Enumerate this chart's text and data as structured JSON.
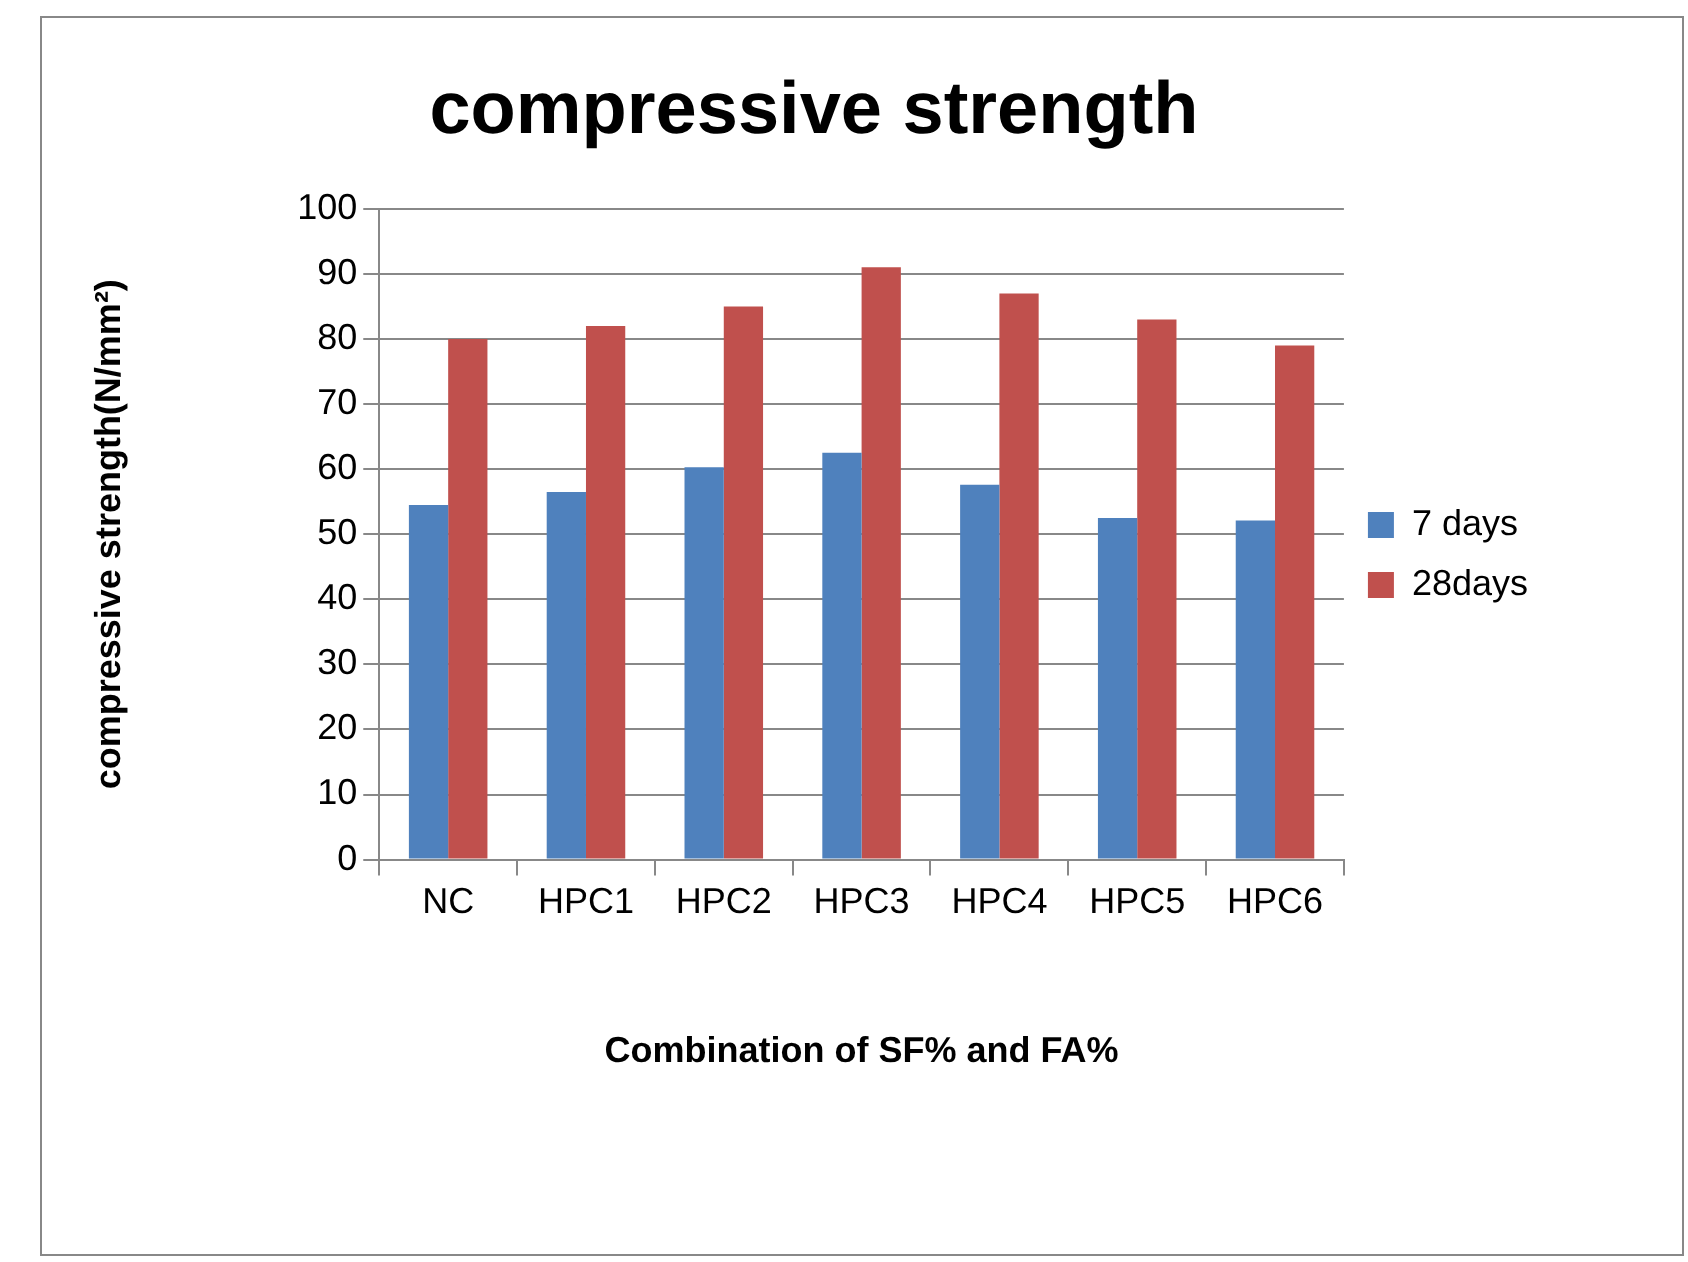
{
  "chart_data": {
    "type": "bar",
    "title": "compressive strength",
    "xlabel": "Combination of SF% and FA%",
    "ylabel": "compressive strength(N/mm²)",
    "categories": [
      "NC",
      "HPC1",
      "HPC2",
      "HPC3",
      "HPC4",
      "HPC5",
      "HPC6"
    ],
    "series": [
      {
        "name": "7 days",
        "color": "#4f81bd",
        "values": [
          54.5,
          56.5,
          60.3,
          62.5,
          57.6,
          52.5,
          52.1
        ]
      },
      {
        "name": "28days",
        "color": "#c0504d",
        "values": [
          80,
          82,
          85,
          91,
          87,
          83,
          79
        ]
      }
    ],
    "ylim": [
      0,
      100
    ],
    "yticks": [
      0,
      10,
      20,
      30,
      40,
      50,
      60,
      70,
      80,
      90,
      100
    ],
    "grid": "y",
    "legend": "right"
  }
}
